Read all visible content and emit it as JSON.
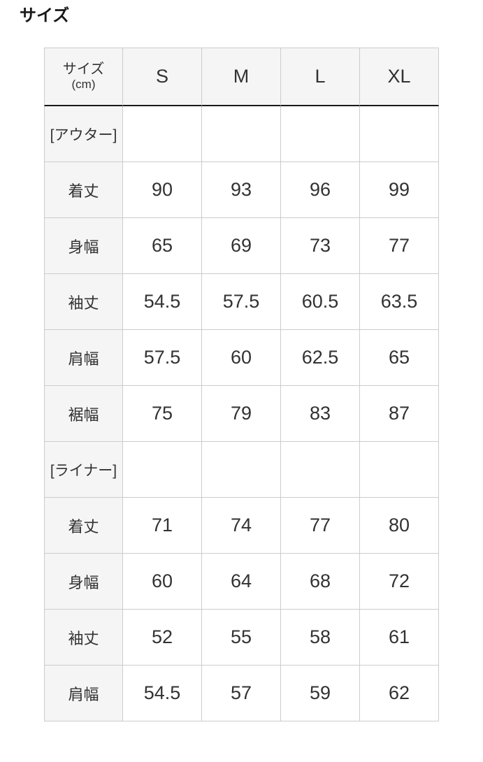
{
  "page": {
    "title": "サイズ"
  },
  "size_table": {
    "corner_header": {
      "line1": "サイズ",
      "line2": "(cm)"
    },
    "columns": [
      "S",
      "M",
      "L",
      "XL"
    ],
    "sections": [
      {
        "label": "[アウター]",
        "rows": [
          {
            "label": "着丈",
            "values": [
              "90",
              "93",
              "96",
              "99"
            ]
          },
          {
            "label": "身幅",
            "values": [
              "65",
              "69",
              "73",
              "77"
            ]
          },
          {
            "label": "袖丈",
            "values": [
              "54.5",
              "57.5",
              "60.5",
              "63.5"
            ]
          },
          {
            "label": "肩幅",
            "values": [
              "57.5",
              "60",
              "62.5",
              "65"
            ]
          },
          {
            "label": "裾幅",
            "values": [
              "75",
              "79",
              "83",
              "87"
            ]
          }
        ]
      },
      {
        "label": "[ライナー]",
        "rows": [
          {
            "label": "着丈",
            "values": [
              "71",
              "74",
              "77",
              "80"
            ]
          },
          {
            "label": "身幅",
            "values": [
              "60",
              "64",
              "68",
              "72"
            ]
          },
          {
            "label": "袖丈",
            "values": [
              "52",
              "55",
              "58",
              "61"
            ]
          },
          {
            "label": "肩幅",
            "values": [
              "54.5",
              "57",
              "59",
              "62"
            ]
          }
        ]
      }
    ]
  },
  "colors": {
    "header_bg": "#f5f5f5",
    "border": "#cccccc",
    "header_underline": "#1a1a1a",
    "text": "#323232",
    "title_text": "#1a1a1a",
    "page_bg": "#ffffff"
  }
}
